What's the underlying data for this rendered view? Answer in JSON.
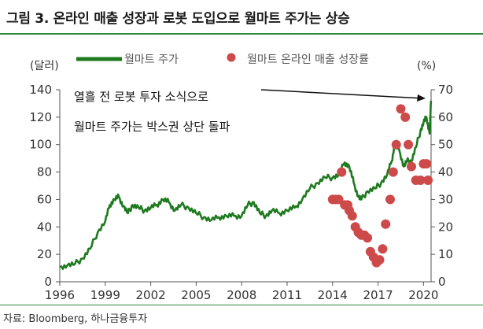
{
  "figure": {
    "title": "그림 3. 온라인 매출 성장과 로봇 도입으로 월마트 주가는 상승",
    "source": "자료: Bloomberg, 하나금융투자"
  },
  "chart_data": {
    "type": "line",
    "left_unit": "(달러)",
    "right_unit": "(%)",
    "x_ticks": [
      "1996",
      "1999",
      "2002",
      "2005",
      "2008",
      "2011",
      "2014",
      "2017",
      "2020"
    ],
    "y_left_ticks": [
      0,
      20,
      40,
      60,
      80,
      100,
      120,
      140
    ],
    "y_right_ticks": [
      0,
      10,
      20,
      30,
      40,
      50,
      60,
      70
    ],
    "xlim": [
      1996,
      2020.5
    ],
    "ylim_left": [
      0,
      140
    ],
    "ylim_right": [
      0,
      70
    ],
    "legend_position": "top",
    "annotations": [
      "열흘 전 로봇 투자 소식으로",
      "월마트 주가는 박스권 상단 돌파"
    ],
    "series": [
      {
        "name": "월마트 주가",
        "axis": "left",
        "kind": "line",
        "color": "#1e7a1e",
        "x": [
          1996.0,
          1996.5,
          1997.0,
          1997.5,
          1998.0,
          1998.5,
          1999.0,
          1999.3,
          1999.6,
          1999.9,
          2000.2,
          2000.5,
          2000.8,
          2001.2,
          2001.6,
          2002.0,
          2002.4,
          2002.8,
          2003.2,
          2003.6,
          2004.0,
          2004.5,
          2005.0,
          2005.5,
          2006.0,
          2006.5,
          2007.0,
          2007.5,
          2008.0,
          2008.4,
          2008.8,
          2009.2,
          2009.6,
          2010.0,
          2010.5,
          2011.0,
          2011.5,
          2012.0,
          2012.5,
          2013.0,
          2013.5,
          2014.0,
          2014.4,
          2014.8,
          2015.1,
          2015.4,
          2015.7,
          2015.9,
          2016.3,
          2016.8,
          2017.2,
          2017.6,
          2017.9,
          2018.1,
          2018.4,
          2018.7,
          2018.9,
          2019.2,
          2019.5,
          2019.8,
          2020.0,
          2020.2,
          2020.4,
          2020.5
        ],
        "y": [
          11,
          12,
          13,
          17,
          24,
          36,
          44,
          56,
          60,
          62,
          55,
          50,
          56,
          54,
          52,
          54,
          56,
          60,
          58,
          52,
          56,
          54,
          50,
          47,
          45,
          47,
          48,
          48,
          48,
          56,
          58,
          50,
          48,
          52,
          50,
          52,
          54,
          60,
          68,
          72,
          76,
          76,
          78,
          87,
          84,
          72,
          62,
          60,
          66,
          68,
          72,
          78,
          88,
          100,
          96,
          84,
          88,
          88,
          98,
          110,
          116,
          120,
          108,
          132
        ]
      },
      {
        "name": "월마트 온라인 매출 성장률",
        "axis": "right",
        "kind": "scatter",
        "color": "#cc4a4a",
        "x": [
          2014.0,
          2014.2,
          2014.4,
          2014.6,
          2014.8,
          2015.0,
          2015.1,
          2015.3,
          2015.5,
          2015.7,
          2015.9,
          2016.1,
          2016.3,
          2016.5,
          2016.7,
          2016.9,
          2017.1,
          2017.3,
          2017.5,
          2017.8,
          2018.0,
          2018.2,
          2018.5,
          2018.8,
          2019.0,
          2019.2,
          2019.5,
          2019.8,
          2020.0,
          2020.2,
          2020.3
        ],
        "y": [
          30,
          30,
          30,
          40,
          28,
          28,
          26,
          24,
          20,
          18,
          17,
          17,
          16,
          11,
          9,
          7,
          8,
          12,
          21,
          30,
          40,
          50,
          63,
          60,
          50,
          42,
          37,
          37,
          43,
          43,
          37
        ]
      }
    ]
  }
}
